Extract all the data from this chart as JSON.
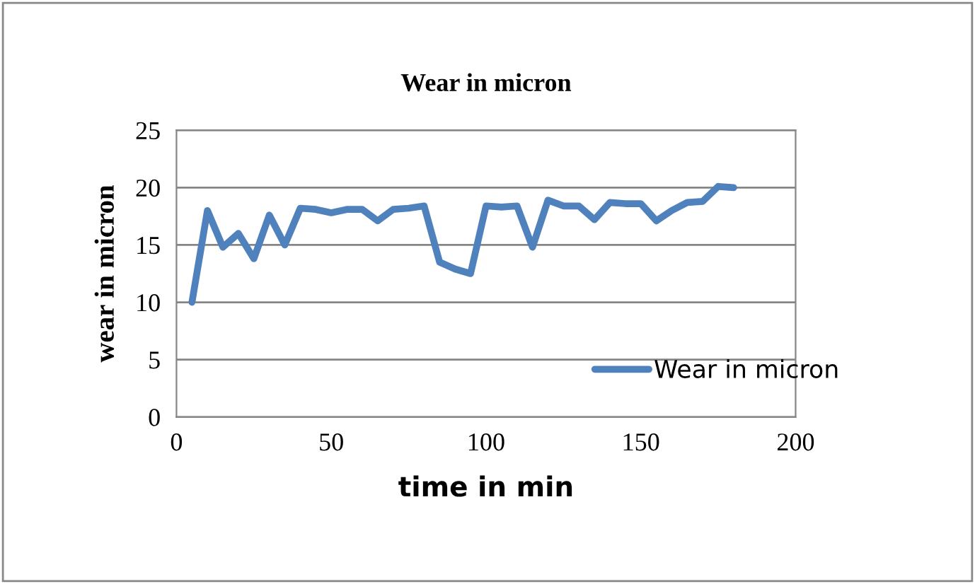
{
  "chart_data": {
    "type": "line",
    "title": "Wear in micron",
    "xlabel": "time in min",
    "ylabel": "wear in micron",
    "x": [
      5,
      10,
      15,
      20,
      25,
      30,
      35,
      40,
      45,
      50,
      55,
      60,
      65,
      70,
      75,
      80,
      85,
      90,
      95,
      100,
      105,
      110,
      115,
      120,
      125,
      130,
      135,
      140,
      145,
      150,
      155,
      160,
      165,
      170,
      175,
      180
    ],
    "series": [
      {
        "name": "Wear in micron",
        "color": "#4f81bd",
        "values": [
          10.0,
          18.0,
          14.8,
          16.0,
          13.8,
          17.6,
          15.0,
          18.2,
          18.1,
          17.8,
          18.1,
          18.1,
          17.1,
          18.1,
          18.2,
          18.4,
          13.5,
          12.9,
          12.5,
          18.4,
          18.3,
          18.4,
          14.8,
          18.9,
          18.4,
          18.4,
          17.2,
          18.7,
          18.6,
          18.6,
          17.1,
          18.0,
          18.7,
          18.8,
          20.1,
          20.0
        ]
      }
    ],
    "xlim": [
      0,
      200
    ],
    "xticks": [
      0,
      50,
      100,
      150,
      200
    ],
    "ylim": [
      0,
      25
    ],
    "yticks": [
      0,
      5,
      10,
      15,
      20,
      25
    ],
    "grid": "y",
    "legend": "right",
    "marker": "none",
    "line_style": "solid"
  }
}
